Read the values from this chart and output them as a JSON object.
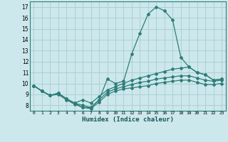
{
  "xlabel": "Humidex (Indice chaleur)",
  "xlim": [
    -0.5,
    23.5
  ],
  "ylim": [
    7.5,
    17.5
  ],
  "xticks": [
    0,
    1,
    2,
    3,
    4,
    5,
    6,
    7,
    8,
    9,
    10,
    11,
    12,
    13,
    14,
    15,
    16,
    17,
    18,
    19,
    20,
    21,
    22,
    23
  ],
  "yticks": [
    8,
    9,
    10,
    11,
    12,
    13,
    14,
    15,
    16,
    17
  ],
  "bg_color": "#cce8ec",
  "grid_color": "#aecfd4",
  "line_color": "#2e7d78",
  "line1_y": [
    9.8,
    9.3,
    8.9,
    9.1,
    8.6,
    8.2,
    7.8,
    7.8,
    8.5,
    10.4,
    10.0,
    10.2,
    12.7,
    14.6,
    16.35,
    17.0,
    16.65,
    15.8,
    12.4,
    11.5,
    11.0,
    10.8,
    10.3,
    10.4
  ],
  "line2_y": [
    9.8,
    9.3,
    8.9,
    9.1,
    8.6,
    8.2,
    8.5,
    8.2,
    8.8,
    9.4,
    9.7,
    10.0,
    10.3,
    10.5,
    10.7,
    10.9,
    11.1,
    11.3,
    11.4,
    11.5,
    11.0,
    10.8,
    10.3,
    10.4
  ],
  "line3_y": [
    9.8,
    9.3,
    8.9,
    9.1,
    8.6,
    8.2,
    8.0,
    7.8,
    8.5,
    9.2,
    9.5,
    9.7,
    9.9,
    10.1,
    10.2,
    10.4,
    10.5,
    10.6,
    10.7,
    10.7,
    10.5,
    10.3,
    10.2,
    10.3
  ],
  "line4_y": [
    9.8,
    9.3,
    8.9,
    9.0,
    8.5,
    8.1,
    7.8,
    7.7,
    8.3,
    9.0,
    9.3,
    9.5,
    9.6,
    9.7,
    9.8,
    10.0,
    10.1,
    10.2,
    10.3,
    10.3,
    10.1,
    9.9,
    9.9,
    10.0
  ]
}
